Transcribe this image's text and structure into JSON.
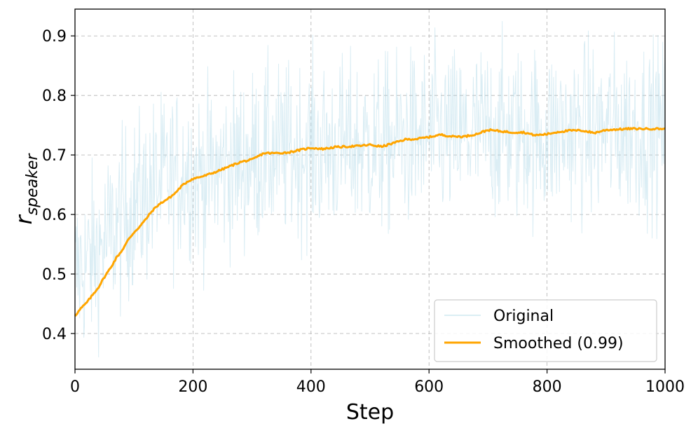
{
  "chart_data": {
    "type": "line",
    "title": "",
    "xlabel": "Step",
    "ylabel_main": "r",
    "ylabel_sub": "speaker",
    "xlim": [
      0,
      1000
    ],
    "ylim": [
      0.34,
      0.945
    ],
    "xticks": [
      0,
      200,
      400,
      600,
      800,
      1000
    ],
    "xtick_labels": [
      "0",
      "200",
      "400",
      "600",
      "800",
      "1000"
    ],
    "yticks": [
      0.4,
      0.5,
      0.6,
      0.7,
      0.8,
      0.9
    ],
    "ytick_labels": [
      "0.4",
      "0.5",
      "0.6",
      "0.7",
      "0.8",
      "0.9"
    ],
    "grid": true,
    "legend_position": "bottom-right",
    "series": [
      {
        "name": "Original",
        "color": "#add8e6",
        "style": "thin-noisy",
        "noise": 0.075,
        "points": 1000
      },
      {
        "name": "Smoothed (0.99)",
        "color": "#ffa500",
        "style": "thick",
        "x": [
          0,
          10,
          20,
          30,
          40,
          50,
          60,
          70,
          80,
          90,
          100,
          110,
          120,
          130,
          140,
          150,
          160,
          170,
          180,
          190,
          200,
          220,
          240,
          260,
          280,
          300,
          320,
          340,
          360,
          380,
          400,
          420,
          440,
          460,
          480,
          500,
          520,
          540,
          560,
          580,
          600,
          620,
          640,
          660,
          680,
          700,
          720,
          740,
          760,
          780,
          800,
          820,
          840,
          860,
          880,
          900,
          920,
          940,
          960,
          980,
          1000
        ],
        "values": [
          0.43,
          0.442,
          0.452,
          0.465,
          0.478,
          0.495,
          0.51,
          0.527,
          0.54,
          0.557,
          0.57,
          0.58,
          0.592,
          0.605,
          0.615,
          0.622,
          0.628,
          0.636,
          0.647,
          0.655,
          0.66,
          0.665,
          0.672,
          0.68,
          0.688,
          0.692,
          0.703,
          0.703,
          0.704,
          0.708,
          0.712,
          0.71,
          0.713,
          0.714,
          0.715,
          0.717,
          0.714,
          0.72,
          0.726,
          0.727,
          0.73,
          0.734,
          0.731,
          0.731,
          0.735,
          0.742,
          0.74,
          0.738,
          0.738,
          0.733,
          0.735,
          0.739,
          0.741,
          0.741,
          0.737,
          0.742,
          0.743,
          0.744,
          0.744,
          0.744,
          0.744
        ]
      }
    ]
  }
}
